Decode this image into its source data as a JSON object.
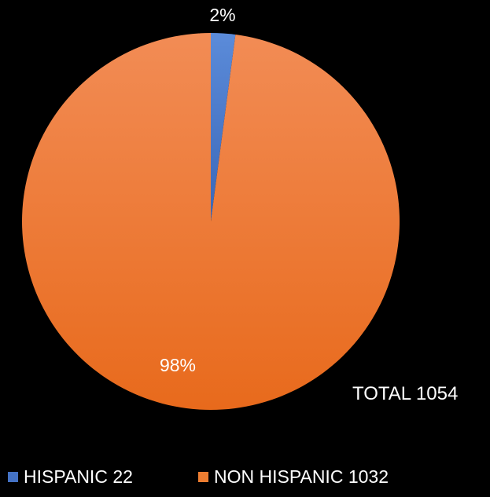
{
  "chart_data": {
    "type": "pie",
    "slices": [
      {
        "name": "HISPANIC",
        "value": 22,
        "label": "2%",
        "color": "#4472C4"
      },
      {
        "name": "NON HISPANIC",
        "value": 1032,
        "label": "98%",
        "color": "#ED7D31"
      }
    ],
    "annotation": "TOTAL 1054",
    "legend": [
      "HISPANIC 22",
      "NON HISPANIC 1032"
    ],
    "legend_position": "bottom"
  }
}
